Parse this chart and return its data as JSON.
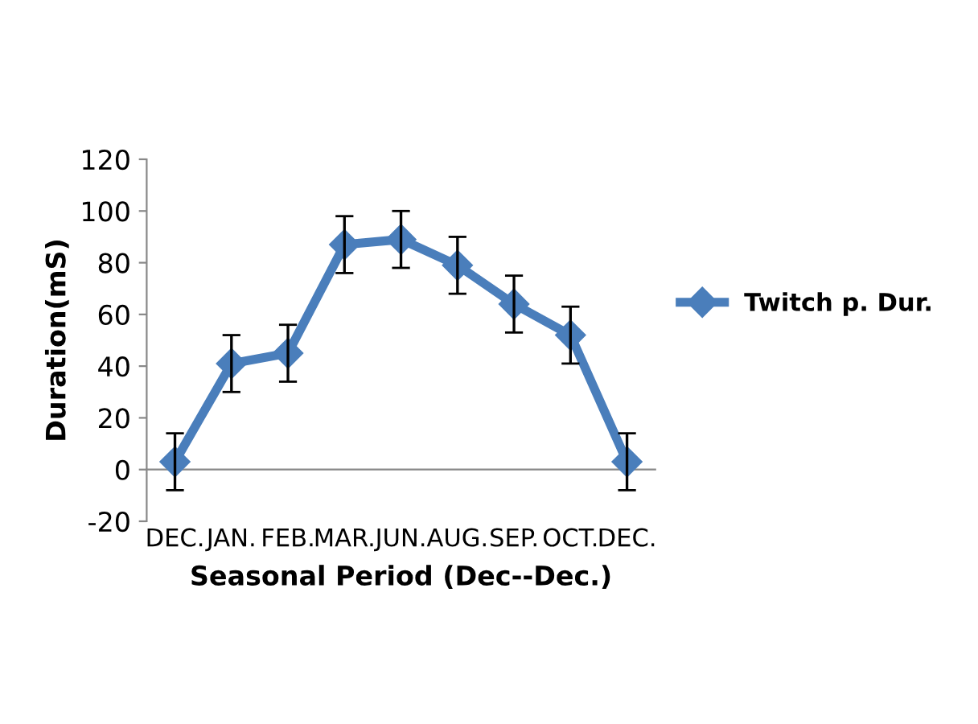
{
  "chart_data": {
    "type": "line",
    "xlabel": "Seasonal Period (Dec--Dec.)",
    "ylabel": "Duration(mS)",
    "categories": [
      "DEC.",
      "JAN.",
      "FEB.",
      "MAR.",
      "JUN.",
      "AUG.",
      "SEP.",
      "OCT.",
      "DEC."
    ],
    "series": [
      {
        "name": "Twitch p. Dur.",
        "color": "#4a7ebb",
        "values": [
          3,
          41,
          45,
          87,
          89,
          79,
          64,
          52,
          3
        ],
        "errors": [
          11,
          11,
          11,
          11,
          11,
          11,
          11,
          11,
          11
        ]
      }
    ],
    "ylim": [
      -20,
      120
    ],
    "yticks": [
      -20,
      0,
      20,
      40,
      60,
      80,
      100,
      120
    ],
    "grid": false,
    "legend": "right",
    "marker": "diamond",
    "line_style": "solid"
  }
}
